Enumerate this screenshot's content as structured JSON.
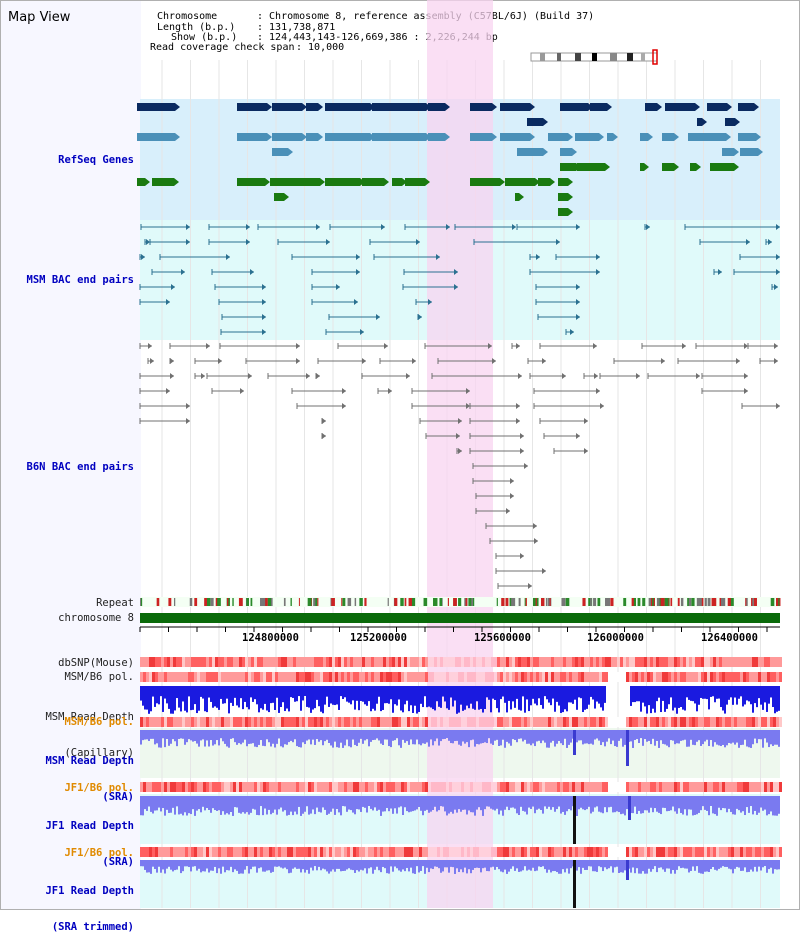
{
  "window": {
    "title": "Map View"
  },
  "header": {
    "chromosome_label": "Chromosome",
    "chromosome_value": ": Chromosome 8, reference assembly (C57BL/6J) (Build 37)",
    "length_label": "Length (b.p.)",
    "length_value": ": 131,738,871",
    "show_label": "Show (b.p.)",
    "show_value": ": 124,443,143-126,669,386 : 2,226,244 bp",
    "coverage_label": "Read coverage check span",
    "coverage_value": ": 10,000"
  },
  "tracks": {
    "refseq": "RefSeq Genes",
    "msm_bac": "MSM BAC end pairs",
    "b6n_bac": "B6N BAC end pairs",
    "repeat": "Repeat",
    "chromosome": "chromosome 8",
    "dbsnp": "dbSNP(Mouse)",
    "msm_b6_pol": "MSM/B6 pol.",
    "msm_depth_cap_1": "MSM Read Depth",
    "msm_depth_cap_2": "(Capillary)",
    "msm_b6_pol_2": "MSM/B6 pol.",
    "msm_depth_sra_1": "MSM Read Depth",
    "msm_depth_sra_2": "(SRA)",
    "jf1_pol": "JF1/B6 pol.",
    "jf1_depth_1": "JF1 Read Depth",
    "jf1_depth_2": "(SRA)",
    "jf1_pol_2": "JF1/B6 pol.",
    "jf1_trim_1": "JF1 Read Depth",
    "jf1_trim_2": "(SRA trimmed)"
  },
  "axis": {
    "ticks": [
      "124800000",
      "125200000",
      "125600000",
      "126000000",
      "126400000"
    ]
  },
  "colors": {
    "highlight": "#f8d4f0",
    "refseq_bg": "#d8effb",
    "msm_bg": "#e0fafa",
    "gene_dark": "#0a2a60",
    "gene_light": "#4a90b8",
    "gene_green": "#1a7a10",
    "bac_line": "#2a7090",
    "b6n_line": "#707070",
    "chrom_bar": "#106010",
    "label_blue": "#0000c0",
    "label_orange": "#e08a00",
    "depth_blue": "#1a1ae0",
    "depth_light": "#7a7af0"
  }
}
